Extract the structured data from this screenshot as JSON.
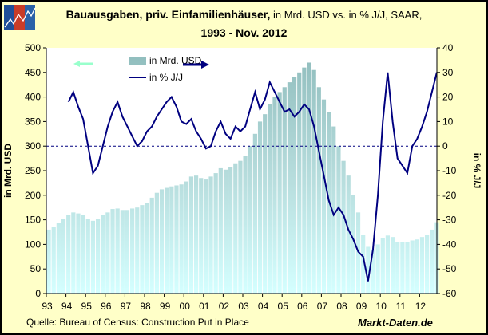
{
  "header": {
    "title_bold": "Bauausgaben, priv. Einfamilienhäuser,",
    "title_rest": " in Mrd. USD vs. in % J/J, SAAR,",
    "title_line2": "1993 - Nov. 2012",
    "logo": "Markt-Daten logo"
  },
  "footer": {
    "source": "Quelle: Bureau of Census: Construction Put in Place",
    "brand": "Markt-Daten.de"
  },
  "chart_data": {
    "type": "bar+line",
    "title": "Bauausgaben, priv. Einfamilienhäuser, in Mrd. USD vs. in % J/J, SAAR, 1993 - Nov. 2012",
    "ylabel": "in Mrd. USD",
    "y2label": "in % J/J",
    "ylim": [
      0,
      500
    ],
    "y2lim": [
      -60,
      40
    ],
    "yticks": [
      "0",
      "50",
      "100",
      "150",
      "200",
      "250",
      "300",
      "350",
      "400",
      "450",
      "500"
    ],
    "y2ticks": [
      "-60",
      "-50",
      "-40",
      "-30",
      "-20",
      "-10",
      "0",
      "10",
      "20",
      "30",
      "40"
    ],
    "xticks": [
      "93",
      "94",
      "95",
      "96",
      "97",
      "98",
      "99",
      "00",
      "01",
      "02",
      "03",
      "04",
      "05",
      "06",
      "07",
      "08",
      "09",
      "10",
      "11",
      "12"
    ],
    "reference_line": {
      "axis": "y2",
      "value": 0,
      "style": "dashed"
    },
    "legend": {
      "placement": "top-left",
      "entries": [
        "in Mrd. USD",
        "in % J/J"
      ]
    },
    "colors": {
      "bars_top": "#8fbcbc",
      "bars_bottom": "#d4ffff",
      "line": "#000080",
      "left_arrow": "#99ffcc",
      "right_arrow": "#000080",
      "background": "#ffffc8"
    },
    "x_quarters": [
      "1993Q1",
      "1993Q2",
      "1993Q3",
      "1993Q4",
      "1994Q1",
      "1994Q2",
      "1994Q3",
      "1994Q4",
      "1995Q1",
      "1995Q2",
      "1995Q3",
      "1995Q4",
      "1996Q1",
      "1996Q2",
      "1996Q3",
      "1996Q4",
      "1997Q1",
      "1997Q2",
      "1997Q3",
      "1997Q4",
      "1998Q1",
      "1998Q2",
      "1998Q3",
      "1998Q4",
      "1999Q1",
      "1999Q2",
      "1999Q3",
      "1999Q4",
      "2000Q1",
      "2000Q2",
      "2000Q3",
      "2000Q4",
      "2001Q1",
      "2001Q2",
      "2001Q3",
      "2001Q4",
      "2002Q1",
      "2002Q2",
      "2002Q3",
      "2002Q4",
      "2003Q1",
      "2003Q2",
      "2003Q3",
      "2003Q4",
      "2004Q1",
      "2004Q2",
      "2004Q3",
      "2004Q4",
      "2005Q1",
      "2005Q2",
      "2005Q3",
      "2005Q4",
      "2006Q1",
      "2006Q2",
      "2006Q3",
      "2006Q4",
      "2007Q1",
      "2007Q2",
      "2007Q3",
      "2007Q4",
      "2008Q1",
      "2008Q2",
      "2008Q3",
      "2008Q4",
      "2009Q1",
      "2009Q2",
      "2009Q3",
      "2009Q4",
      "2010Q1",
      "2010Q2",
      "2010Q3",
      "2010Q4",
      "2011Q1",
      "2011Q2",
      "2011Q3",
      "2011Q4",
      "2012Q1",
      "2012Q2",
      "2012Q3",
      "2012Q4"
    ],
    "series": [
      {
        "name": "in Mrd. USD",
        "axis": "left",
        "type": "bar",
        "values": [
          130,
          135,
          143,
          152,
          160,
          165,
          163,
          160,
          152,
          148,
          152,
          160,
          165,
          172,
          173,
          170,
          170,
          173,
          175,
          180,
          185,
          195,
          205,
          212,
          215,
          218,
          220,
          222,
          228,
          238,
          240,
          235,
          232,
          238,
          245,
          255,
          252,
          258,
          265,
          270,
          280,
          300,
          325,
          350,
          365,
          385,
          400,
          410,
          420,
          430,
          440,
          450,
          460,
          470,
          455,
          420,
          395,
          370,
          340,
          300,
          270,
          240,
          200,
          165,
          120,
          95,
          90,
          100,
          112,
          118,
          115,
          105,
          105,
          105,
          108,
          110,
          115,
          120,
          130,
          145
        ]
      },
      {
        "name": "in % J/J",
        "axis": "right",
        "type": "line",
        "values": [
          null,
          null,
          null,
          null,
          18,
          22,
          16,
          11,
          0,
          -11,
          -8,
          0,
          8,
          14,
          18,
          12,
          8,
          4,
          0,
          2,
          6,
          8,
          12,
          15,
          18,
          20,
          16,
          10,
          9,
          11,
          6,
          3,
          -1,
          0,
          6,
          10,
          5,
          3,
          8,
          6,
          8,
          15,
          22,
          15,
          19,
          26,
          22,
          18,
          14,
          15,
          12,
          14,
          17,
          15,
          8,
          -2,
          -12,
          -22,
          -28,
          -25,
          -28,
          -34,
          -38,
          -43,
          -45,
          -55,
          -42,
          -20,
          10,
          30,
          10,
          -5,
          -8,
          -11,
          0,
          3,
          8,
          14,
          22,
          30
        ]
      }
    ]
  }
}
